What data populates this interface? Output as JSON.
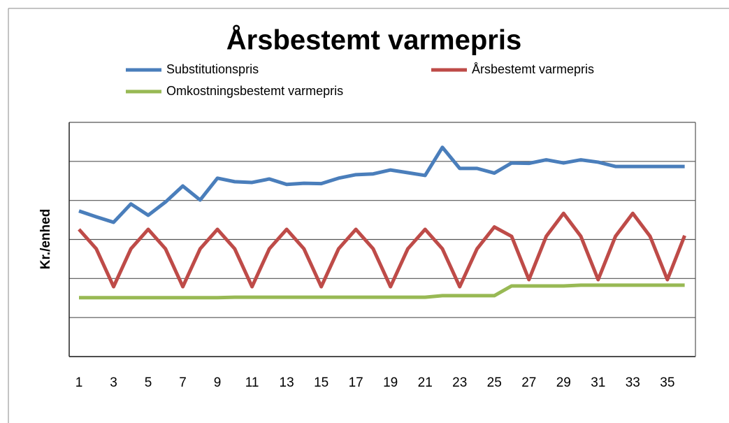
{
  "chart_data": {
    "type": "line",
    "title": "Årsbestemt varmepris",
    "y_label": "Kr./enhed",
    "categories": [
      1,
      null,
      3,
      null,
      5,
      null,
      7,
      null,
      9,
      null,
      11,
      null,
      13,
      null,
      15,
      null,
      17,
      null,
      19,
      null,
      21,
      null,
      23,
      null,
      25,
      null,
      27,
      null,
      29,
      null,
      31,
      null,
      33,
      null,
      35,
      null
    ],
    "ylim": [
      0,
      6
    ],
    "yticks": [
      0,
      1,
      2,
      3,
      4,
      5,
      6
    ],
    "grid": true,
    "legend": "top",
    "series": [
      {
        "name": "Substitutionspris",
        "color": "#4a7ebb",
        "values": [
          3.73,
          3.58,
          3.44,
          3.91,
          3.62,
          3.96,
          4.37,
          4.01,
          4.57,
          4.48,
          4.46,
          4.55,
          4.41,
          4.44,
          4.43,
          4.57,
          4.66,
          4.68,
          4.78,
          4.71,
          4.64,
          5.36,
          4.82,
          4.82,
          4.7,
          4.96,
          4.95,
          5.04,
          4.96,
          5.04,
          4.98,
          4.87,
          4.87,
          4.87,
          4.87,
          4.87
        ]
      },
      {
        "name": "Årsbestemt varmepris",
        "color": "#be4b48",
        "values": [
          3.26,
          2.76,
          1.79,
          2.76,
          3.26,
          2.76,
          1.79,
          2.76,
          3.26,
          2.76,
          1.79,
          2.76,
          3.26,
          2.76,
          1.79,
          2.76,
          3.26,
          2.76,
          1.79,
          2.76,
          3.26,
          2.76,
          1.79,
          2.76,
          3.32,
          3.08,
          1.97,
          3.08,
          3.67,
          3.08,
          1.97,
          3.08,
          3.67,
          3.08,
          1.97,
          3.1
        ]
      },
      {
        "name": "Omkostningsbestemt varmepris",
        "color": "#98b954",
        "values": [
          1.51,
          1.51,
          1.51,
          1.51,
          1.51,
          1.51,
          1.51,
          1.51,
          1.51,
          1.52,
          1.52,
          1.52,
          1.52,
          1.52,
          1.52,
          1.52,
          1.52,
          1.52,
          1.52,
          1.52,
          1.52,
          1.56,
          1.56,
          1.56,
          1.56,
          1.81,
          1.81,
          1.81,
          1.81,
          1.83,
          1.83,
          1.83,
          1.83,
          1.83,
          1.83,
          1.83
        ]
      }
    ]
  }
}
